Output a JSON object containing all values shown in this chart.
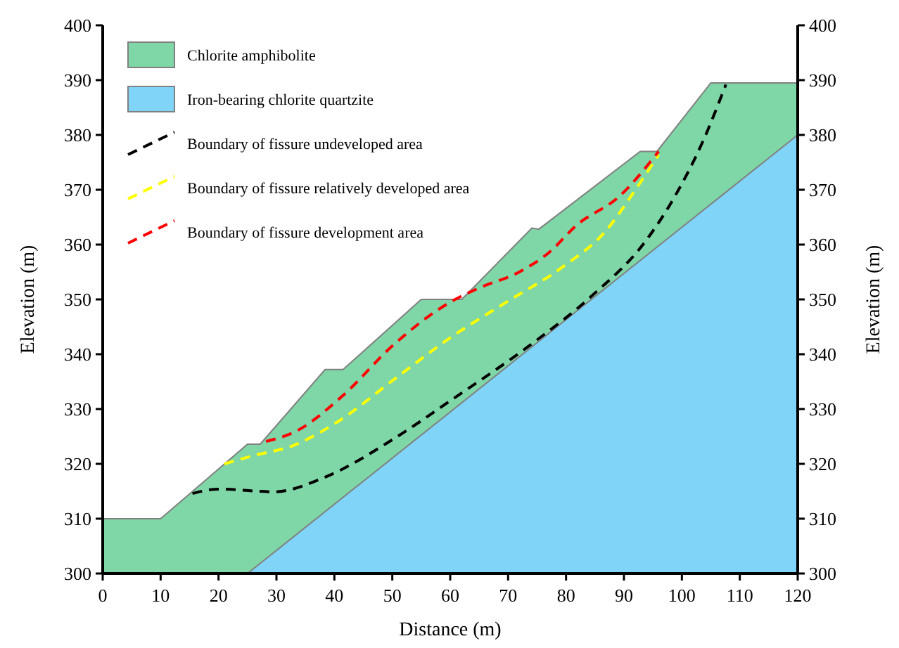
{
  "chart_data": {
    "type": "area",
    "xlabel": "Distance (m)",
    "ylabel": "Elevation (m)",
    "y2label": "Elevation (m)",
    "xlim": [
      0,
      120
    ],
    "xticks": [
      0,
      10,
      20,
      30,
      40,
      50,
      60,
      70,
      80,
      90,
      100,
      110,
      120
    ],
    "ylim": [
      300,
      400
    ],
    "yticks": [
      300,
      310,
      320,
      330,
      340,
      350,
      360,
      370,
      380,
      390,
      400
    ],
    "y2lim": [
      300,
      400
    ],
    "y2ticks": [
      300,
      310,
      320,
      330,
      340,
      350,
      360,
      370,
      380,
      390,
      400
    ],
    "legend": "top left",
    "grid": false,
    "series": [
      {
        "name": "Chlorite amphibolite",
        "color": "#7fd6a6",
        "x": [
          0,
          10,
          25,
          27.2,
          38.4,
          41.5,
          55,
          62,
          74.1,
          75.3,
          92.8,
          95.7,
          105,
          120
        ],
        "values": [
          310,
          310,
          323.6,
          323.6,
          337.2,
          337.2,
          350,
          350,
          363,
          362.8,
          377,
          377,
          389.5,
          389.5
        ]
      },
      {
        "name": "Iron-bearing chlorite quartzite",
        "color": "#7fd4f7",
        "x": [
          25,
          120
        ],
        "values": [
          300,
          380
        ]
      },
      {
        "name": "Boundary of fissure undeveloped area",
        "type": "line",
        "color": "#000000",
        "line_style": "dashed",
        "x": [
          15.5,
          20,
          29.6,
          38,
          50.3,
          60,
          74.6,
          84.3,
          94,
          98.9,
          103.7,
          107.6
        ],
        "values": [
          314.6,
          315.4,
          314.9,
          317.4,
          324.6,
          331.5,
          342.3,
          350.5,
          361,
          369,
          379,
          389.2
        ]
      },
      {
        "name": "Boundary of fissure relatively developed area",
        "type": "line",
        "color": "#ffff00",
        "line_style": "dashed",
        "x": [
          21,
          26,
          32.8,
          40.6,
          50.3,
          60,
          69.7,
          79.4,
          86.7,
          92.8,
          96
        ],
        "values": [
          320,
          321.5,
          323.3,
          327.7,
          335.4,
          343,
          349.5,
          355.9,
          362.3,
          371.3,
          376.4
        ]
      },
      {
        "name": "Boundary of fissure development area",
        "type": "line",
        "color": "#ff0000",
        "line_style": "dashed",
        "x": [
          28.2,
          33.3,
          41.3,
          50.3,
          60,
          64.8,
          72.1,
          77,
          81.9,
          89.1,
          96
        ],
        "values": [
          324.1,
          325.9,
          332.3,
          341.8,
          349.5,
          352,
          355.1,
          358.5,
          363.6,
          368.7,
          377
        ]
      }
    ]
  }
}
